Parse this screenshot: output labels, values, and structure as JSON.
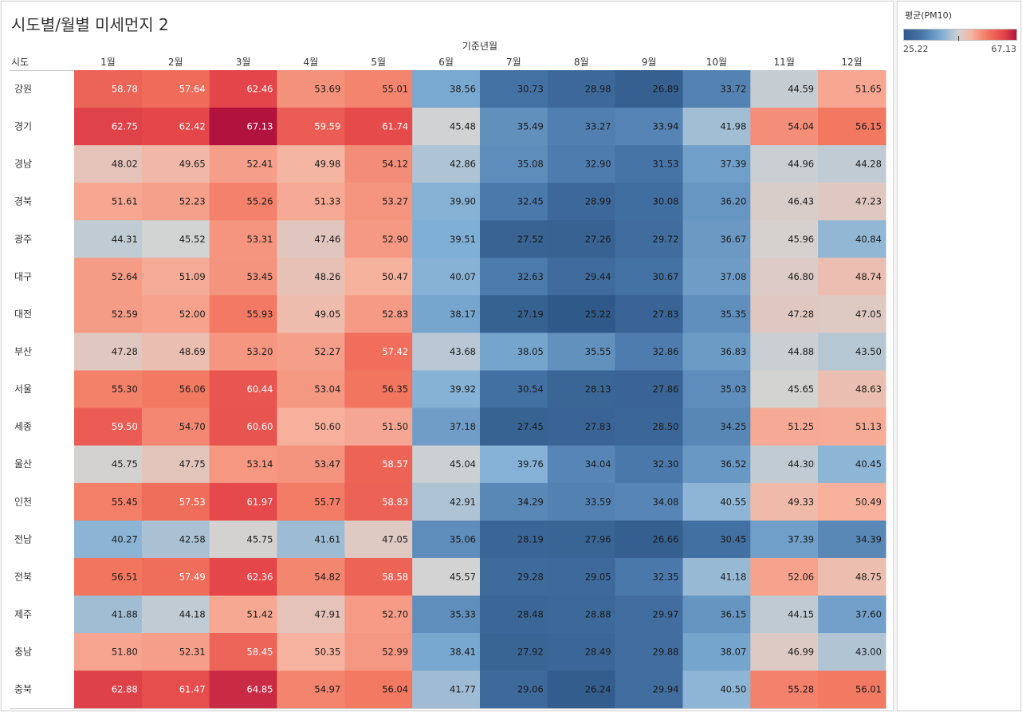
{
  "title": "시도별/월별 미세먼지 2",
  "legend": {
    "title": "평균(PM10)",
    "min_label": "25.22",
    "max_label": "67.13",
    "color_low": "#2f5988",
    "color_mid": "#d3d3d3",
    "color_high": "#b1123e"
  },
  "chart_data": {
    "type": "heatmap",
    "title": "시도별/월별 미세먼지 2",
    "column_header": "기준년월",
    "row_header": "시도",
    "columns": [
      "1월",
      "2월",
      "3월",
      "4월",
      "5월",
      "6월",
      "7월",
      "8월",
      "9월",
      "10월",
      "11월",
      "12월"
    ],
    "rows": [
      "강원",
      "경기",
      "경남",
      "경북",
      "광주",
      "대구",
      "대전",
      "부산",
      "서울",
      "세종",
      "울산",
      "인천",
      "전남",
      "전북",
      "제주",
      "충남",
      "충북"
    ],
    "values": [
      [
        "58.78",
        "57.64",
        "62.46",
        "53.69",
        "55.01",
        "38.56",
        "30.73",
        "28.98",
        "26.89",
        "33.72",
        "44.59",
        "51.65"
      ],
      [
        "62.75",
        "62.42",
        "67.13",
        "59.59",
        "61.74",
        "45.48",
        "35.49",
        "33.27",
        "33.94",
        "41.98",
        "54.04",
        "56.15"
      ],
      [
        "48.02",
        "49.65",
        "52.41",
        "49.98",
        "54.12",
        "42.86",
        "35.08",
        "32.90",
        "31.53",
        "37.39",
        "44.96",
        "44.28"
      ],
      [
        "51.61",
        "52.23",
        "55.26",
        "51.33",
        "53.27",
        "39.90",
        "32.45",
        "28.99",
        "30.08",
        "36.20",
        "46.43",
        "47.23"
      ],
      [
        "44.31",
        "45.52",
        "53.31",
        "47.46",
        "52.90",
        "39.51",
        "27.52",
        "27.26",
        "29.72",
        "36.67",
        "45.96",
        "40.84"
      ],
      [
        "52.64",
        "51.09",
        "53.45",
        "48.26",
        "50.47",
        "40.07",
        "32.63",
        "29.44",
        "30.67",
        "37.08",
        "46.80",
        "48.74"
      ],
      [
        "52.59",
        "52.00",
        "55.93",
        "49.05",
        "52.83",
        "38.17",
        "27.19",
        "25.22",
        "27.83",
        "35.35",
        "47.28",
        "47.05"
      ],
      [
        "47.28",
        "48.69",
        "53.20",
        "52.27",
        "57.42",
        "43.68",
        "38.05",
        "35.55",
        "32.86",
        "36.83",
        "44.88",
        "43.50"
      ],
      [
        "55.30",
        "56.06",
        "60.44",
        "53.04",
        "56.35",
        "39.92",
        "30.54",
        "28.13",
        "27.86",
        "35.03",
        "45.65",
        "48.63"
      ],
      [
        "59.50",
        "54.70",
        "60.60",
        "50.60",
        "51.50",
        "37.18",
        "27.45",
        "27.83",
        "28.50",
        "34.25",
        "51.25",
        "51.13"
      ],
      [
        "45.75",
        "47.75",
        "53.14",
        "53.47",
        "58.57",
        "45.04",
        "39.76",
        "34.04",
        "32.30",
        "36.52",
        "44.30",
        "40.45"
      ],
      [
        "55.45",
        "57.53",
        "61.97",
        "55.77",
        "58.83",
        "42.91",
        "34.29",
        "33.59",
        "34.08",
        "40.55",
        "49.33",
        "50.49"
      ],
      [
        "40.27",
        "42.58",
        "45.75",
        "41.61",
        "47.05",
        "35.06",
        "28.19",
        "27.96",
        "26.66",
        "30.45",
        "37.39",
        "34.39"
      ],
      [
        "56.51",
        "57.49",
        "62.36",
        "54.82",
        "58.58",
        "45.57",
        "29.28",
        "29.05",
        "32.35",
        "41.18",
        "52.06",
        "48.75"
      ],
      [
        "41.88",
        "44.18",
        "51.42",
        "47.91",
        "52.70",
        "35.33",
        "28.48",
        "28.88",
        "29.97",
        "36.15",
        "44.15",
        "37.60"
      ],
      [
        "51.80",
        "52.31",
        "58.45",
        "50.35",
        "52.99",
        "38.41",
        "27.92",
        "28.49",
        "29.88",
        "38.07",
        "46.99",
        "43.00"
      ],
      [
        "62.88",
        "61.47",
        "64.85",
        "54.97",
        "56.04",
        "41.77",
        "29.06",
        "26.24",
        "29.94",
        "40.50",
        "55.28",
        "56.01"
      ]
    ],
    "color_range": [
      25.22,
      67.13
    ],
    "color_center": 45.6
  }
}
